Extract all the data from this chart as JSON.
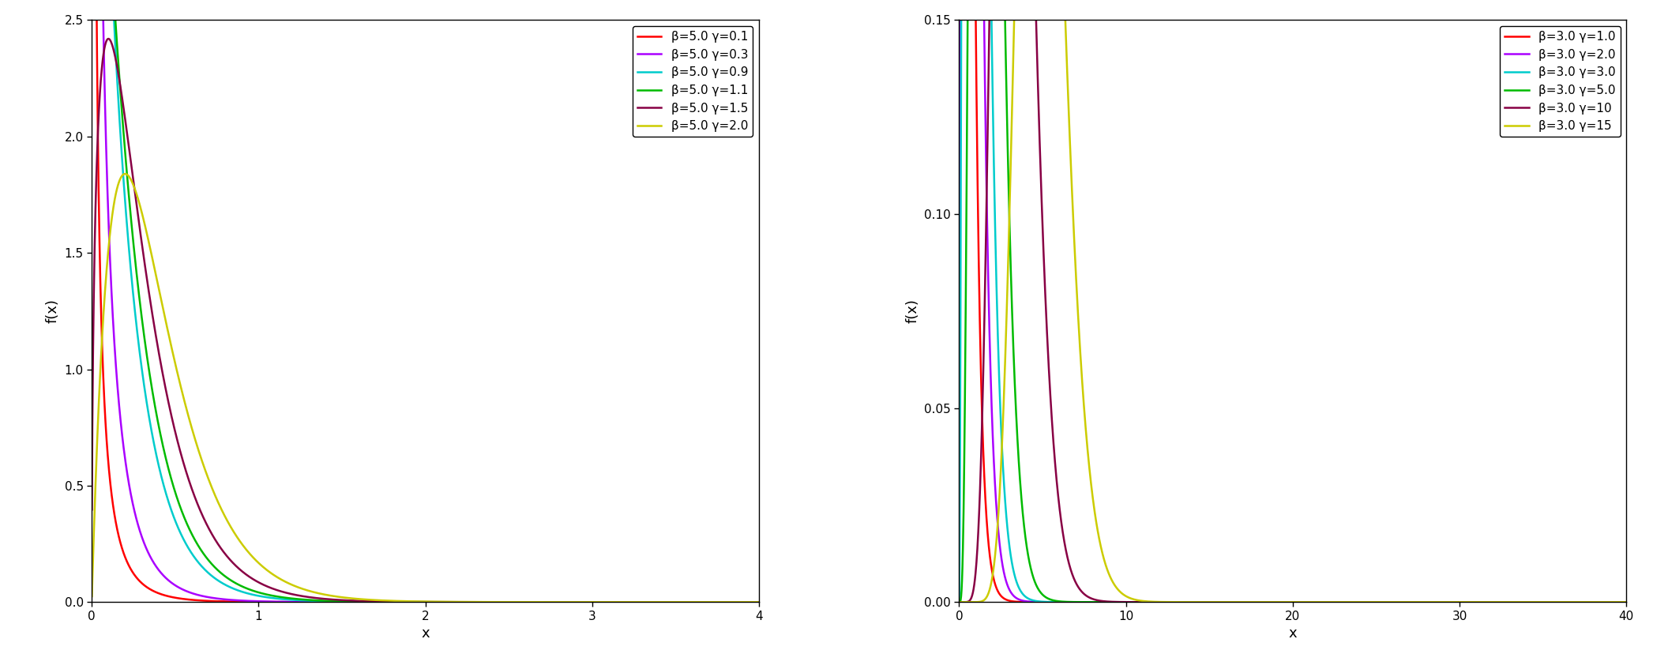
{
  "plot1": {
    "beta": 5.0,
    "gammas": [
      0.1,
      0.3,
      0.9,
      1.1,
      1.5,
      2.0
    ],
    "colors": [
      "#FF0000",
      "#AA00FF",
      "#00CCCC",
      "#00BB00",
      "#880044",
      "#CCCC00"
    ],
    "labels": [
      "β=5.0 γ=0.1",
      "β=5.0 γ=0.3",
      "β=5.0 γ=0.9",
      "β=5.0 γ=1.1",
      "β=5.0 γ=1.5",
      "β=5.0 γ=2.0"
    ],
    "xmin": 0.001,
    "xmax": 4.0,
    "ymin": 0.0,
    "ymax": 2.5,
    "yticks": [
      0.0,
      0.5,
      1.0,
      1.5,
      2.0,
      2.5
    ],
    "xticks": [
      0,
      1,
      2,
      3,
      4
    ],
    "xlabel": "x",
    "ylabel": "f(x)"
  },
  "plot2": {
    "beta": 3.0,
    "gammas": [
      1.0,
      2.0,
      3.0,
      5.0,
      10.0,
      15.0
    ],
    "colors": [
      "#FF0000",
      "#AA00FF",
      "#00CCCC",
      "#00BB00",
      "#880044",
      "#CCCC00"
    ],
    "labels": [
      "β=3.0 γ=1.0",
      "β=3.0 γ=2.0",
      "β=3.0 γ=3.0",
      "β=3.0 γ=5.0",
      "β=3.0 γ=10",
      "β=3.0 γ=15"
    ],
    "xmin": 0.001,
    "xmax": 40.0,
    "ymin": 0.0,
    "ymax": 0.15,
    "yticks": [
      0.0,
      0.05,
      0.1,
      0.15
    ],
    "xticks": [
      0,
      10,
      20,
      30,
      40
    ],
    "xlabel": "x",
    "ylabel": "f(x)"
  },
  "background_color": "#FFFFFF",
  "linewidth": 1.8,
  "legend_fontsize": 11,
  "axis_fontsize": 13,
  "tick_fontsize": 11
}
